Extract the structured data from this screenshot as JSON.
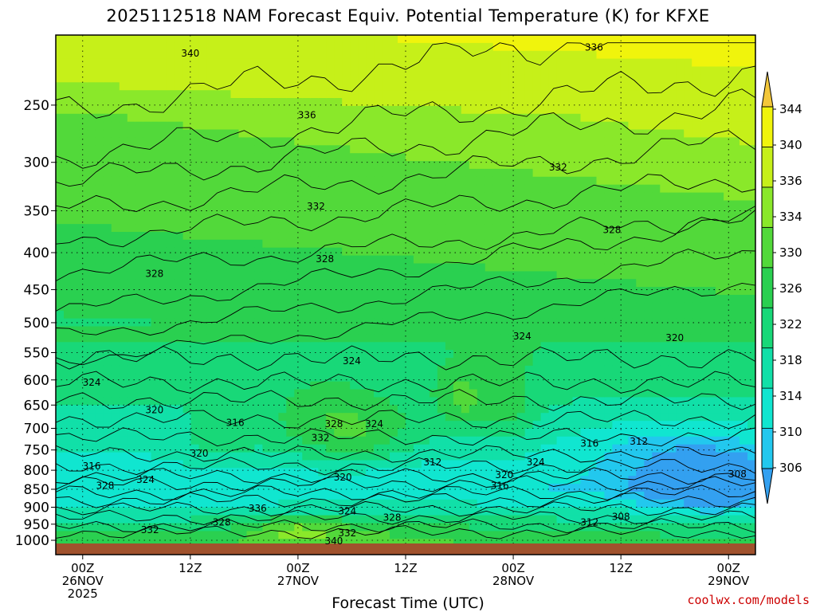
{
  "chart_data": {
    "type": "heatmap",
    "title": "2025112518 NAM Forecast Equiv. Potential Temperature (K) for KFXE",
    "xlabel": "Forecast Time (UTC)",
    "ylabel": "",
    "y_scale": "log-pressure",
    "y_ticks": [
      250,
      300,
      350,
      400,
      450,
      500,
      550,
      600,
      650,
      700,
      750,
      800,
      850,
      900,
      950,
      1000
    ],
    "y_range_hPa": [
      1000,
      200
    ],
    "x_range_hours": [
      -3,
      75
    ],
    "x_ticks": [
      {
        "hour": 0,
        "label": [
          "00Z",
          "26NOV",
          "2025"
        ]
      },
      {
        "hour": 12,
        "label": [
          "12Z"
        ]
      },
      {
        "hour": 24,
        "label": [
          "00Z",
          "27NOV"
        ]
      },
      {
        "hour": 36,
        "label": [
          "12Z"
        ]
      },
      {
        "hour": 48,
        "label": [
          "00Z",
          "28NOV"
        ]
      },
      {
        "hour": 60,
        "label": [
          "12Z"
        ]
      },
      {
        "hour": 72,
        "label": [
          "00Z",
          "29NOV"
        ]
      }
    ],
    "grid": true,
    "colorbar": {
      "levels": [
        306,
        310,
        314,
        318,
        322,
        326,
        330,
        334,
        336,
        340,
        344
      ],
      "label_values": [
        "306",
        "310",
        "314",
        "318",
        "322",
        "326",
        "330",
        "334",
        "336",
        "340",
        "344"
      ],
      "colors": [
        "#33a0f0",
        "#22c8ee",
        "#10e6d0",
        "#11e0a8",
        "#18d878",
        "#2ad050",
        "#52d93a",
        "#8ae82a",
        "#c6f019",
        "#f0f40c",
        "#f3c73a"
      ]
    },
    "contour_labels": [
      {
        "value": "340",
        "hour": 12,
        "p": 212
      },
      {
        "value": "336",
        "hour": 25,
        "p": 258
      },
      {
        "value": "336",
        "hour": 57,
        "p": 208
      },
      {
        "value": "332",
        "hour": 26,
        "p": 345
      },
      {
        "value": "332",
        "hour": 53,
        "p": 305
      },
      {
        "value": "328",
        "hour": 8,
        "p": 428
      },
      {
        "value": "328",
        "hour": 27,
        "p": 408
      },
      {
        "value": "328",
        "hour": 59,
        "p": 372
      },
      {
        "value": "324",
        "hour": 49,
        "p": 522
      },
      {
        "value": "324",
        "hour": 30,
        "p": 565
      },
      {
        "value": "324",
        "hour": 1,
        "p": 605
      },
      {
        "value": "320",
        "hour": 66,
        "p": 525
      },
      {
        "value": "320",
        "hour": 8,
        "p": 660
      },
      {
        "value": "316",
        "hour": 17,
        "p": 688
      },
      {
        "value": "328",
        "hour": 28,
        "p": 690
      },
      {
        "value": "324",
        "hour": 32.5,
        "p": 690
      },
      {
        "value": "332",
        "hour": 26.5,
        "p": 722
      },
      {
        "value": "320",
        "hour": 13,
        "p": 758
      },
      {
        "value": "312",
        "hour": 39,
        "p": 780
      },
      {
        "value": "316",
        "hour": 1,
        "p": 790
      },
      {
        "value": "320",
        "hour": 29,
        "p": 818
      },
      {
        "value": "320",
        "hour": 47,
        "p": 812
      },
      {
        "value": "324",
        "hour": 50.5,
        "p": 780
      },
      {
        "value": "316",
        "hour": 56.5,
        "p": 735
      },
      {
        "value": "312",
        "hour": 62,
        "p": 730
      },
      {
        "value": "308",
        "hour": 73,
        "p": 810
      },
      {
        "value": "316",
        "hour": 46.5,
        "p": 840
      },
      {
        "value": "328",
        "hour": 2.5,
        "p": 840
      },
      {
        "value": "324",
        "hour": 7,
        "p": 825
      },
      {
        "value": "336",
        "hour": 19.5,
        "p": 903
      },
      {
        "value": "324",
        "hour": 29.5,
        "p": 912
      },
      {
        "value": "328",
        "hour": 34.5,
        "p": 930
      },
      {
        "value": "332",
        "hour": 7.5,
        "p": 968
      },
      {
        "value": "328",
        "hour": 15.5,
        "p": 945
      },
      {
        "value": "308",
        "hour": 60,
        "p": 928
      },
      {
        "value": "312",
        "hour": 56.5,
        "p": 945
      },
      {
        "value": "332",
        "hour": 29.5,
        "p": 978
      },
      {
        "value": "340",
        "hour": 28,
        "p": 1002
      }
    ],
    "field_description_bands": [
      {
        "p_top": 200,
        "p_bot": 260,
        "theta": 340
      },
      {
        "p_top": 260,
        "p_bot": 400,
        "theta": 333
      },
      {
        "p_top": 400,
        "p_bot": 560,
        "theta": 327
      },
      {
        "p_top": 560,
        "p_bot": 740,
        "theta": 322
      },
      {
        "p_top": 740,
        "p_bot": 860,
        "theta": 315
      },
      {
        "p_top": 860,
        "p_bot": 1000,
        "theta": 326
      }
    ]
  },
  "axis_titles": {
    "x": "Forecast Time (UTC)"
  },
  "credit": "coolwx.com/models",
  "colors": {
    "ground": "#a0522d",
    "contour": "#000000",
    "credit": "#cc0000"
  }
}
